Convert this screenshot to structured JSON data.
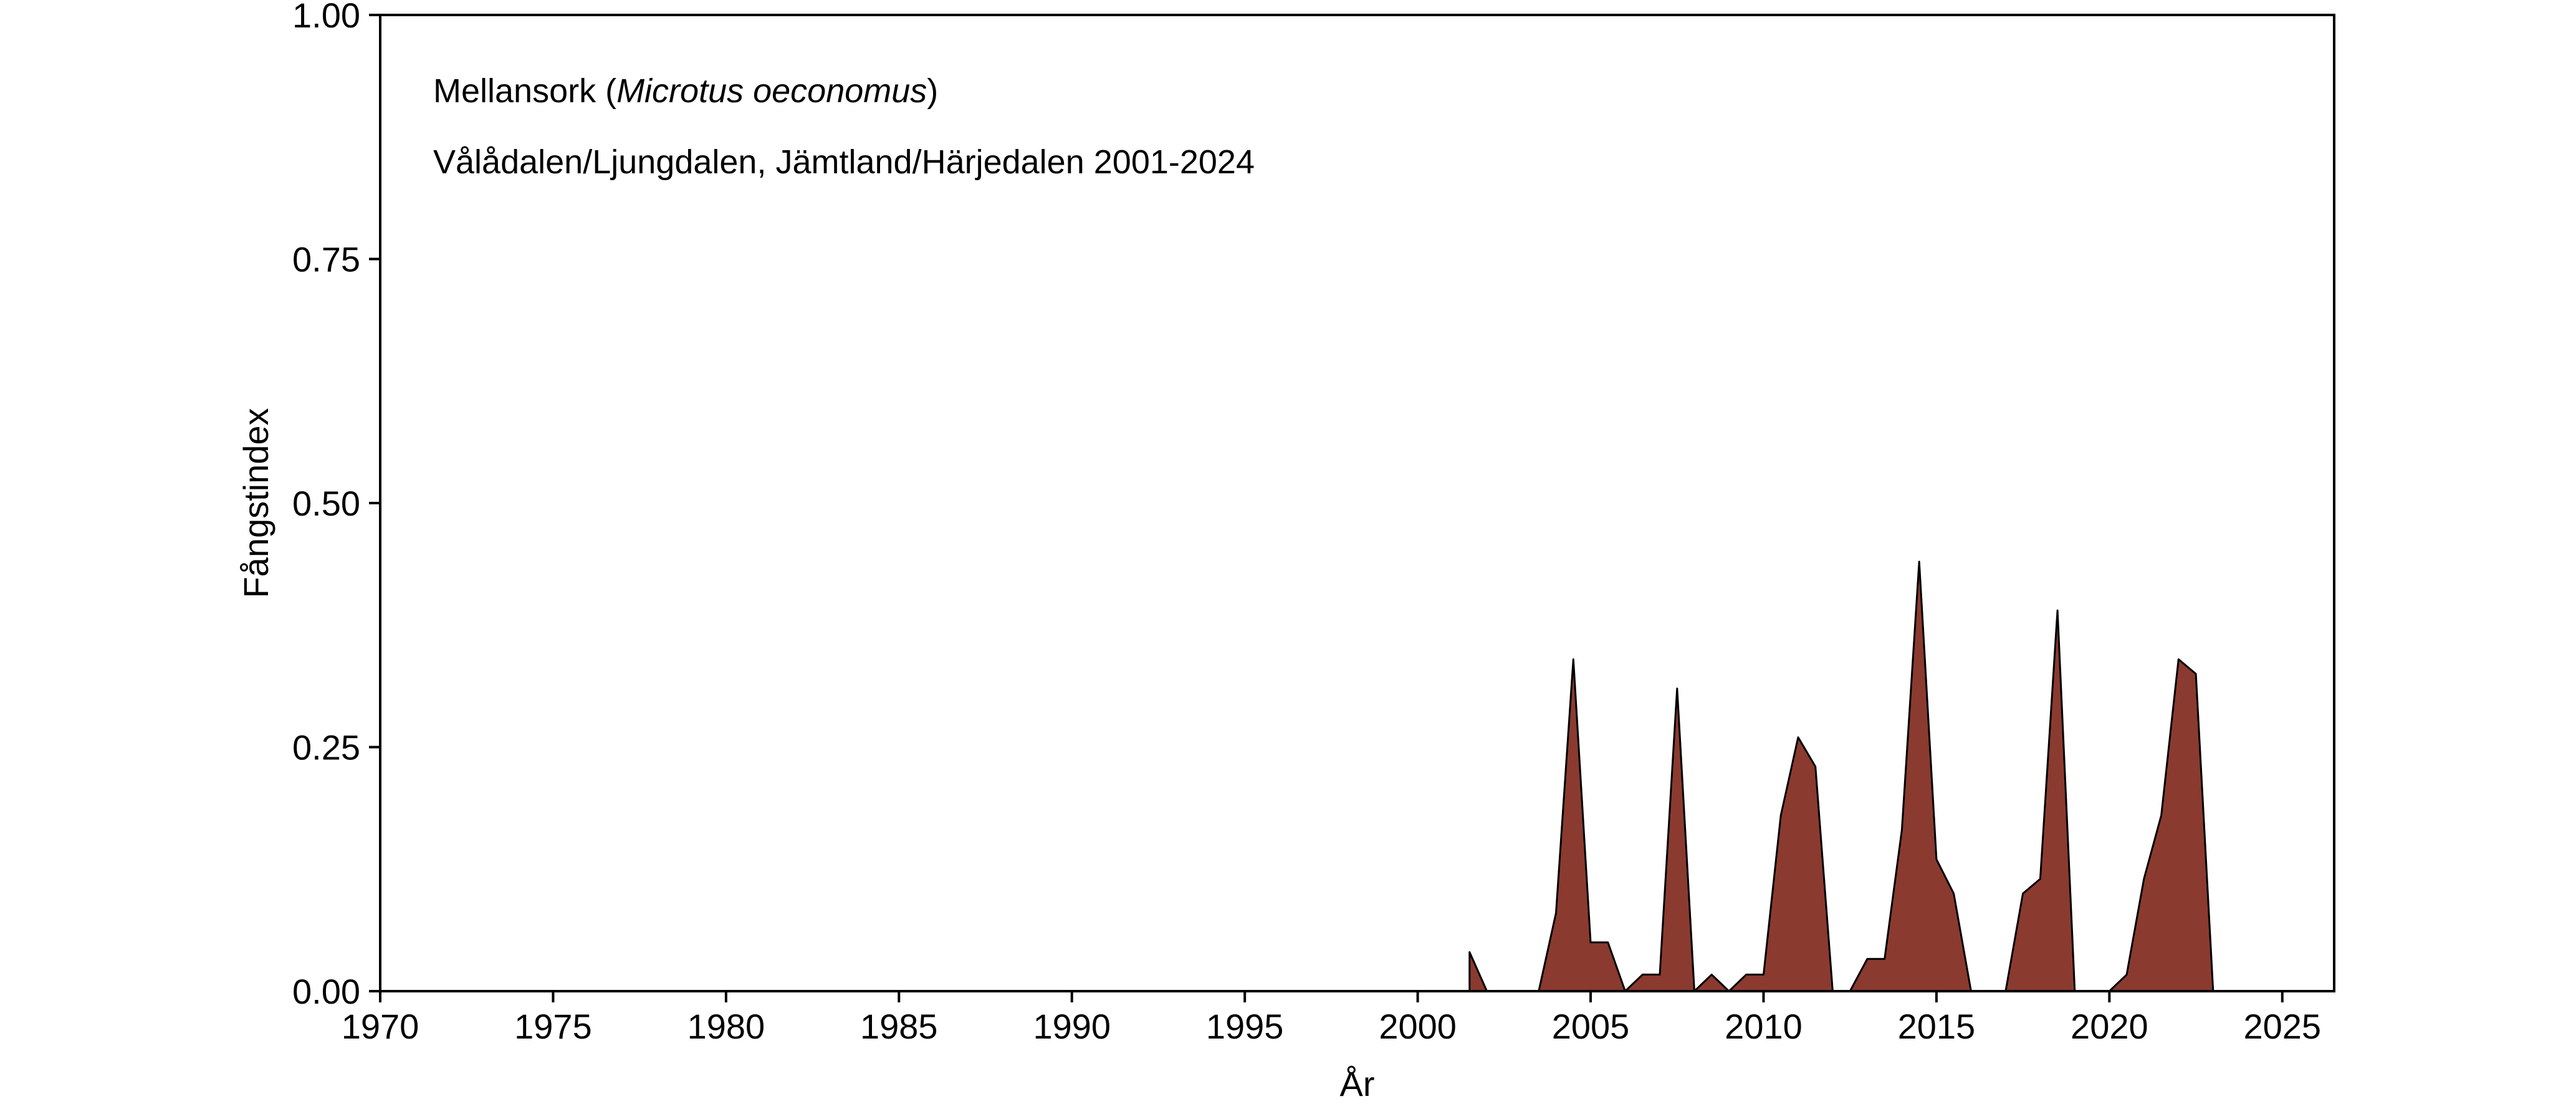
{
  "chart_data": {
    "type": "area",
    "xlabel": "År",
    "ylabel": "Fångstindex",
    "xlim": [
      1970,
      2026.5
    ],
    "ylim": [
      0,
      1
    ],
    "xticks": [
      "1970",
      "1975",
      "1980",
      "1985",
      "1990",
      "1995",
      "2000",
      "2005",
      "2010",
      "2015",
      "2020",
      "2025"
    ],
    "yticks": [
      "0.00",
      "0.25",
      "0.50",
      "0.75",
      "1.00"
    ],
    "grid": false,
    "fill_color": "#8b3a2f",
    "annotations": {
      "species_common": "Mellansork (",
      "species_latin": "Microtus oeconomus",
      "species_close": ")",
      "location": "Vålådalen/Ljungdalen, Jämtland/Härjedalen 2001-2024"
    },
    "segments": [
      [
        [
          2001.5,
          0.0
        ],
        [
          2001.5,
          0.04
        ],
        [
          2002.0,
          0.0
        ]
      ],
      [
        [
          2003.5,
          0.0
        ],
        [
          2004.0,
          0.08
        ],
        [
          2004.5,
          0.34
        ],
        [
          2005.0,
          0.05
        ],
        [
          2005.5,
          0.05
        ],
        [
          2006.0,
          0.0
        ],
        [
          2006.5,
          0.017
        ],
        [
          2007.0,
          0.017
        ],
        [
          2007.5,
          0.31
        ],
        [
          2008.0,
          0.0
        ],
        [
          2008.5,
          0.017
        ],
        [
          2009.0,
          0.0
        ],
        [
          2009.5,
          0.017
        ],
        [
          2010.0,
          0.017
        ],
        [
          2010.5,
          0.18
        ],
        [
          2011.0,
          0.26
        ],
        [
          2011.5,
          0.23
        ],
        [
          2012.0,
          0.0
        ]
      ],
      [
        [
          2012.5,
          0.0
        ],
        [
          2013.0,
          0.033
        ],
        [
          2013.5,
          0.033
        ],
        [
          2014.0,
          0.165
        ],
        [
          2014.5,
          0.44
        ],
        [
          2015.0,
          0.135
        ],
        [
          2015.5,
          0.1
        ],
        [
          2016.0,
          0.0
        ]
      ],
      [
        [
          2017.0,
          0.0
        ],
        [
          2017.5,
          0.1
        ],
        [
          2018.0,
          0.115
        ],
        [
          2018.5,
          0.39
        ],
        [
          2019.0,
          0.0
        ]
      ],
      [
        [
          2020.0,
          0.0
        ],
        [
          2020.5,
          0.017
        ],
        [
          2021.0,
          0.115
        ],
        [
          2021.5,
          0.18
        ],
        [
          2022.0,
          0.34
        ],
        [
          2022.5,
          0.325
        ],
        [
          2023.0,
          0.0
        ]
      ]
    ]
  }
}
